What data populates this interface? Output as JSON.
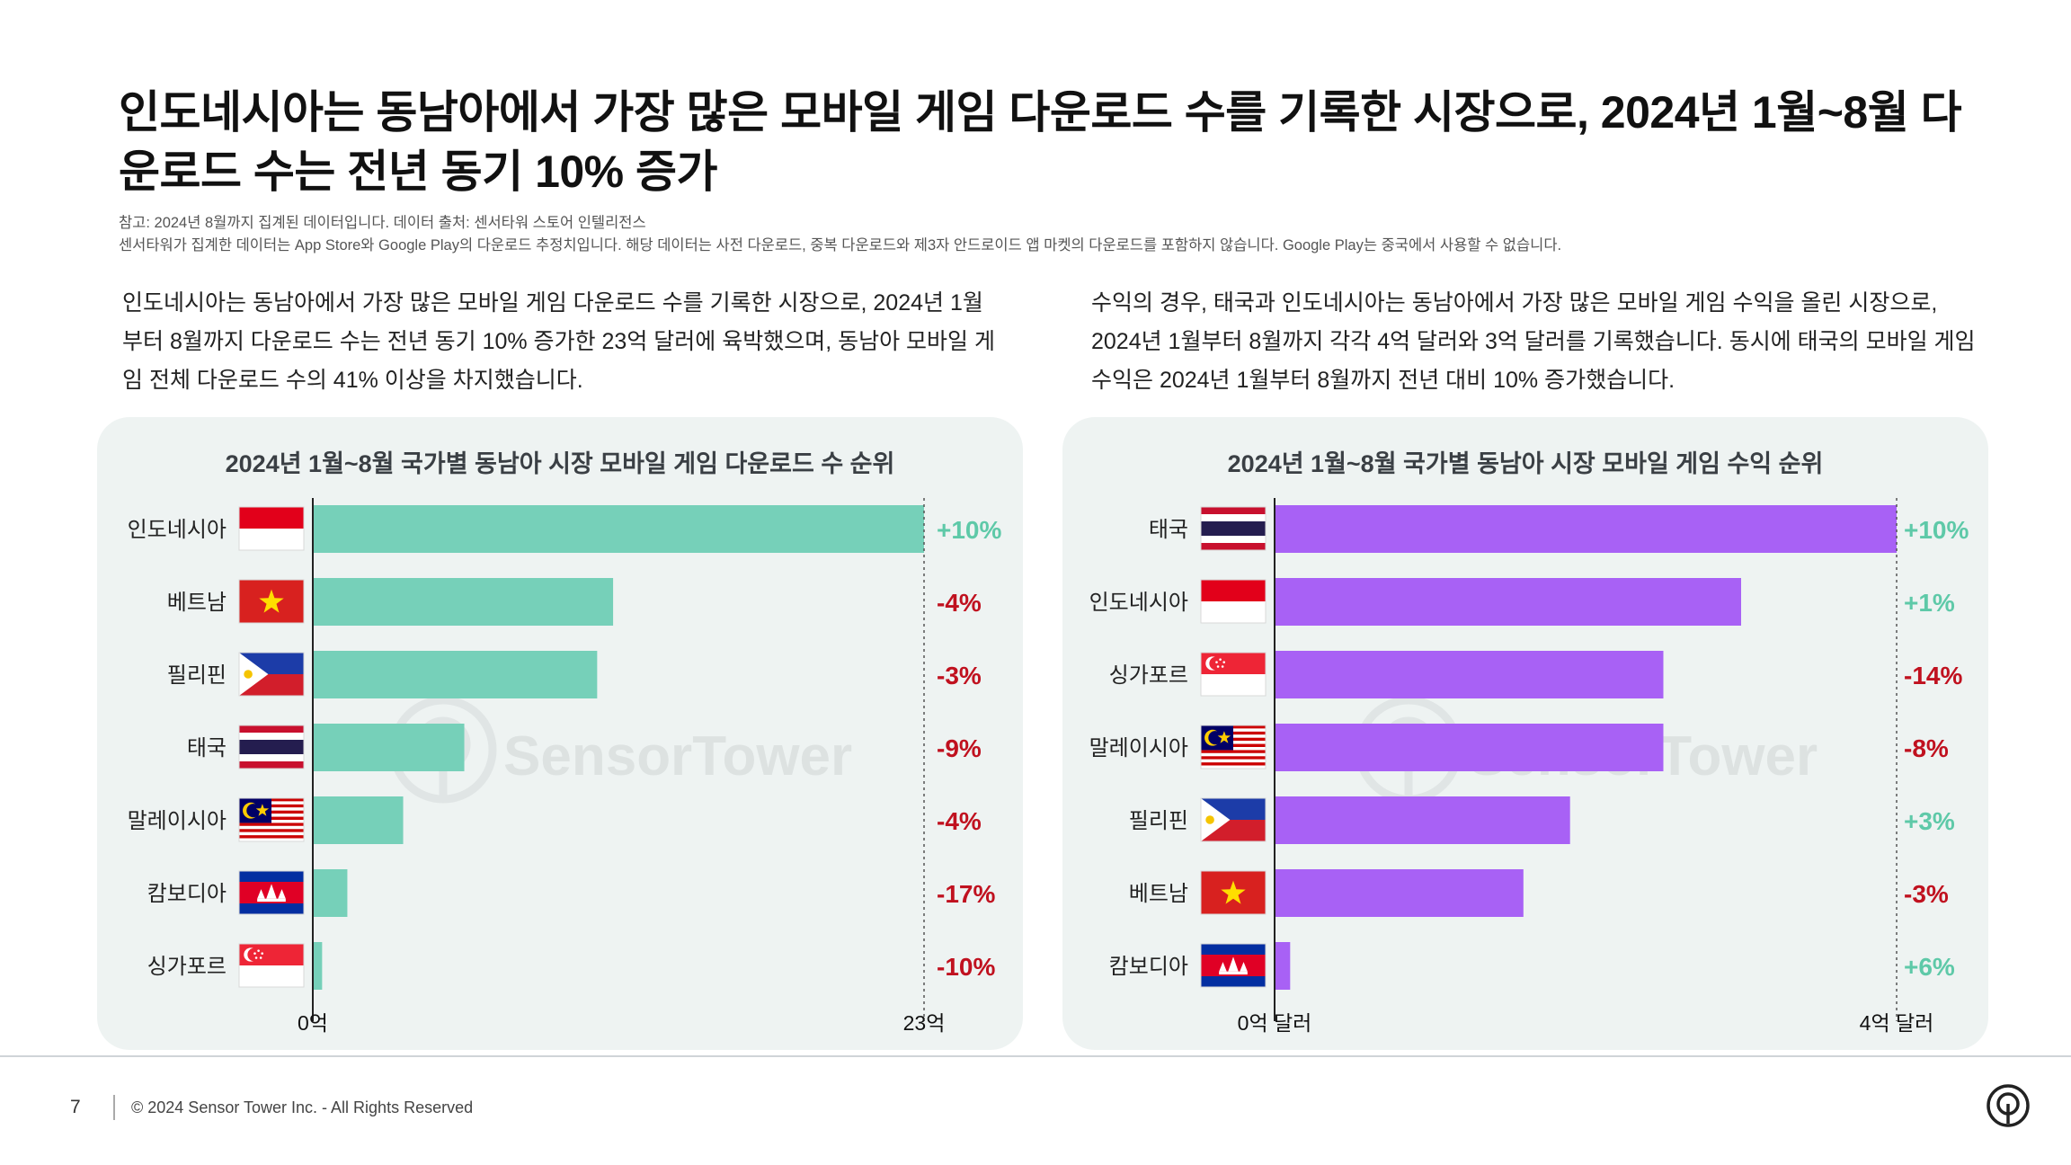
{
  "title": "인도네시아는 동남아에서 가장 많은 모바일 게임 다운로드 수를 기록한 시장으로, 2024년 1월~8월 다운로드 수는 전년 동기 10% 증가",
  "notes": [
    "참고: 2024년 8월까지 집계된 데이터입니다. 데이터 출처: 센서타워 스토어 인텔리전스",
    "센서타워가 집계한 데이터는 App Store와 Google Play의 다운로드 추정치입니다. 해당 데이터는 사전 다운로드, 중복 다운로드와 제3자 안드로이드 앱 마켓의 다운로드를 포함하지 않습니다. Google Play는 중국에서 사용할 수 없습니다."
  ],
  "left_description": "인도네시아는 동남아에서 가장 많은 모바일 게임 다운로드 수를 기록한 시장으로, 2024년 1월부터 8월까지 다운로드 수는 전년 동기 10% 증가한 23억 달러에 육박했으며, 동남아 모바일 게임 전체 다운로드 수의 41% 이상을 차지했습니다.",
  "right_description": "수익의 경우, 태국과 인도네시아는 동남아에서 가장 많은 모바일 게임 수익을 올린 시장으로, 2024년 1월부터 8월까지 각각 4억 달러와 3억 달러를 기록했습니다. 동시에 태국의 모바일 게임 수익은 2024년 1월부터 8월까지 전년 대비 10% 증가했습니다.",
  "watermark": "SensorTower",
  "chart_data": [
    {
      "type": "bar",
      "orientation": "horizontal",
      "title": "2024년 1월~8월 국가별 동남아 시장 모바일 게임 다운로드 수 순위",
      "categories": [
        "인도네시아",
        "베트남",
        "필리핀",
        "태국",
        "말레이시아",
        "캄보디아",
        "싱가포르"
      ],
      "flags": [
        "indonesia",
        "vietnam",
        "philippines",
        "thailand",
        "malaysia",
        "cambodia",
        "singapore"
      ],
      "values": [
        23,
        11.3,
        10.7,
        5.7,
        3.4,
        1.3,
        0.35
      ],
      "changes": [
        "+10%",
        "-4%",
        "-3%",
        "-9%",
        "-4%",
        "-17%",
        "-10%"
      ],
      "xlim": [
        0,
        23
      ],
      "axis_labels": [
        "0억",
        "23억"
      ],
      "color": "#76d0b9"
    },
    {
      "type": "bar",
      "orientation": "horizontal",
      "title": "2024년 1월~8월 국가별 동남아 시장 모바일 게임 수익 순위",
      "categories": [
        "태국",
        "인도네시아",
        "싱가포르",
        "말레이시아",
        "필리핀",
        "베트남",
        "캄보디아"
      ],
      "flags": [
        "thailand",
        "indonesia",
        "singapore",
        "malaysia",
        "philippines",
        "vietnam",
        "cambodia"
      ],
      "values": [
        4,
        3.0,
        2.5,
        2.5,
        1.9,
        1.6,
        0.1
      ],
      "changes": [
        "+10%",
        "+1%",
        "-14%",
        "-8%",
        "+3%",
        "-3%",
        "+6%"
      ],
      "xlim": [
        0,
        4
      ],
      "axis_labels": [
        "0억 달러",
        "4억 달러"
      ],
      "color": "#a861f5"
    }
  ],
  "colors": {
    "positive": "#5ec9a8",
    "negative": "#c0111f"
  },
  "footer": {
    "page": "7",
    "copyright": "© 2024 Sensor Tower Inc. - All Rights Reserved"
  }
}
